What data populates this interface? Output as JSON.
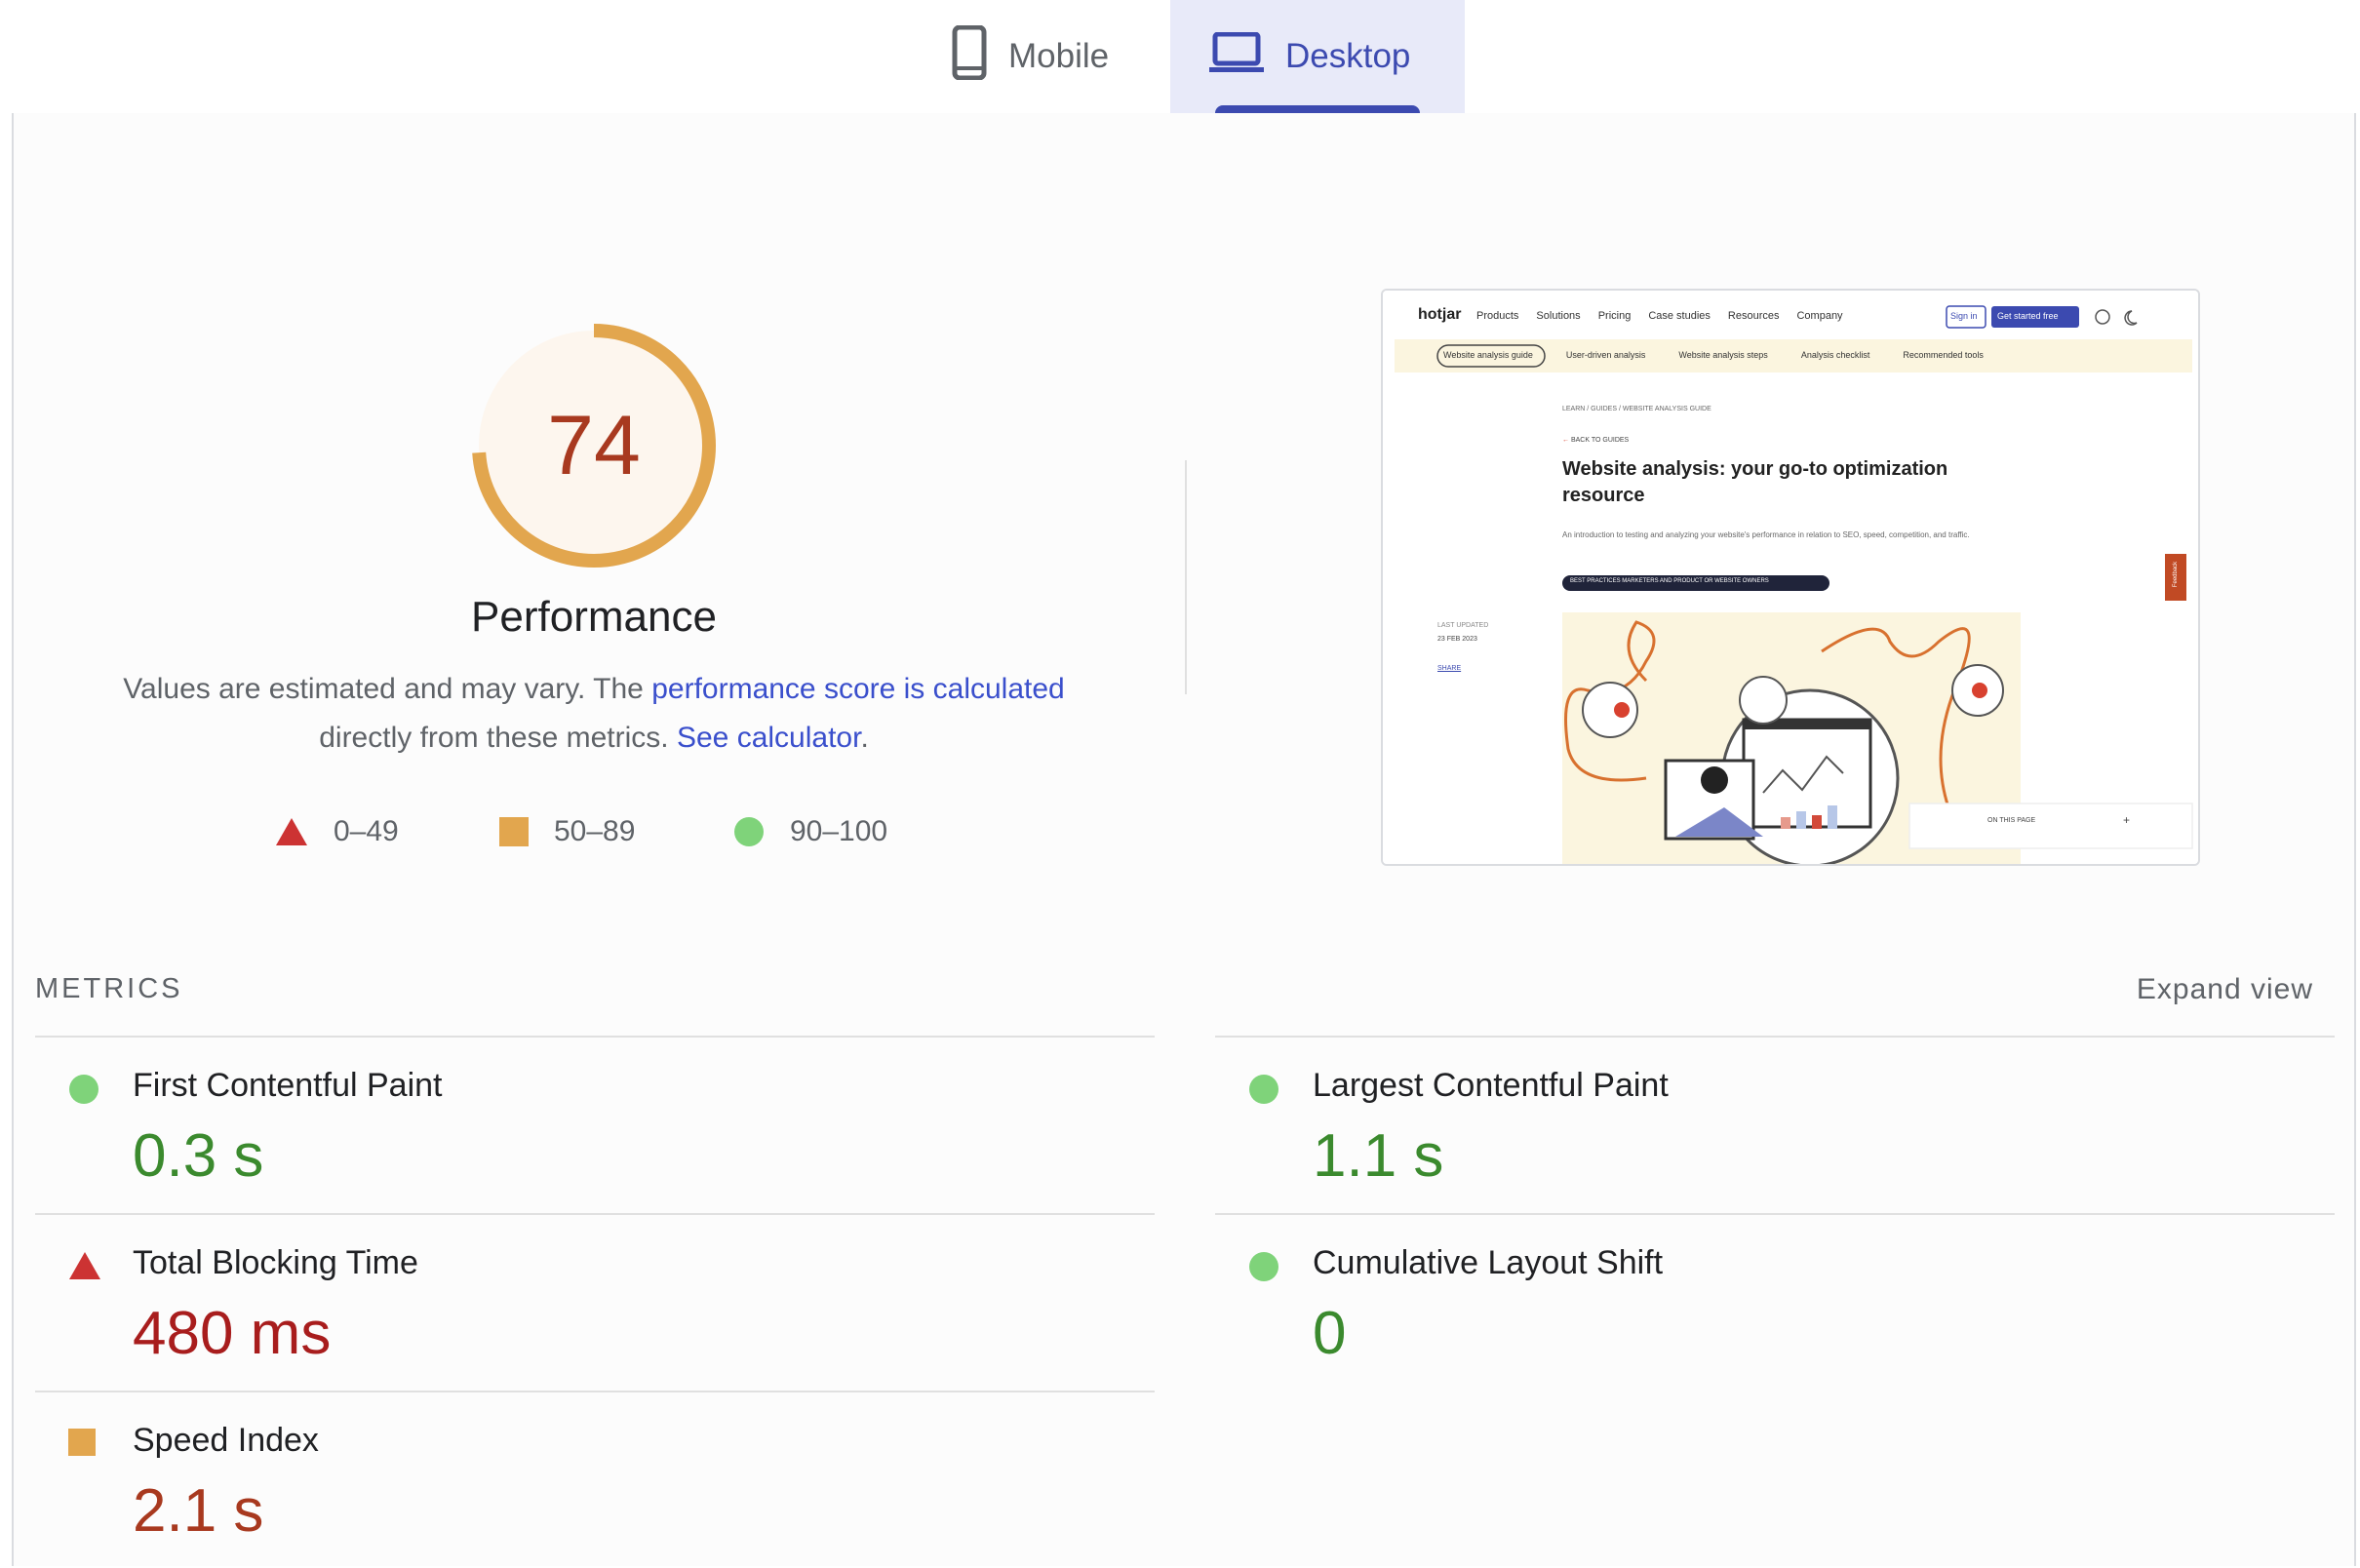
{
  "tabs": {
    "mobile": "Mobile",
    "desktop": "Desktop",
    "selected": "Desktop"
  },
  "score": {
    "value": "74",
    "fraction": 0.74,
    "title": "Performance"
  },
  "description": {
    "part1": "Values are estimated and may vary. The ",
    "link1": "performance score is calculated",
    "part2": " directly from these metrics. ",
    "link2": "See calculator",
    "part3": "."
  },
  "legend": [
    {
      "range": "0–49",
      "shape": "triangle",
      "color": "#cc3333"
    },
    {
      "range": "50–89",
      "shape": "square",
      "color": "#e2a64e"
    },
    {
      "range": "90–100",
      "shape": "circle",
      "color": "#7fd37a"
    }
  ],
  "metrics_header": "METRICS",
  "expand_label": "Expand view",
  "metrics": [
    {
      "name": "First Contentful Paint",
      "value": "0.3 s",
      "status": "pass"
    },
    {
      "name": "Largest Contentful Paint",
      "value": "1.1 s",
      "status": "pass"
    },
    {
      "name": "Total Blocking Time",
      "value": "480 ms",
      "status": "fail"
    },
    {
      "name": "Cumulative Layout Shift",
      "value": "0",
      "status": "pass"
    },
    {
      "name": "Speed Index",
      "value": "2.1 s",
      "status": "average"
    }
  ],
  "screenshot": {
    "logo": "hotjar",
    "nav": [
      "Products",
      "Solutions",
      "Pricing",
      "Case studies",
      "Resources",
      "Company"
    ],
    "sign_in": "Sign in",
    "cta": "Get started free",
    "subnav": [
      "Website analysis guide",
      "User-driven analysis",
      "Website analysis steps",
      "Analysis checklist",
      "Recommended tools"
    ],
    "breadcrumb": "LEARN / GUIDES / WEBSITE ANALYSIS GUIDE",
    "back": "BACK TO GUIDES",
    "heading": "Website analysis: your go-to optimization resource",
    "intro": "An introduction to testing and analyzing your website's performance in relation to SEO, speed, competition, and traffic.",
    "tag": "BEST PRACTICES MARKETERS AND PRODUCT OR WEBSITE OWNERS",
    "last_updated_label": "LAST UPDATED",
    "last_updated": "23 FEB 2023",
    "share": "SHARE",
    "on_this_page": "ON THIS PAGE",
    "feedback": "Feedback"
  },
  "colors": {
    "pass": "#3b8a2e",
    "fail": "#a81d1d",
    "average": "#a8391f",
    "accent": "#3c4ab0",
    "gauge": "#e2a64e"
  }
}
